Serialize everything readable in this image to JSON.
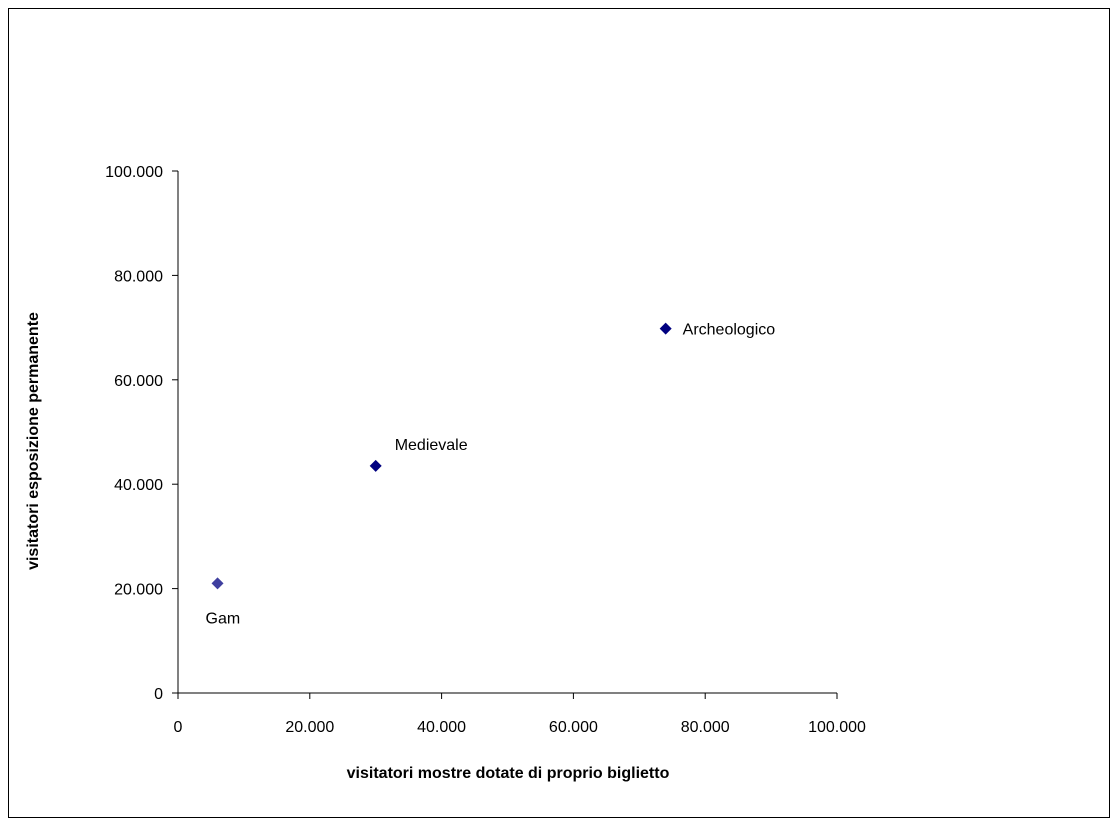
{
  "chart_data": {
    "type": "scatter",
    "xlabel": "visitatori mostre dotate di proprio biglietto",
    "ylabel": "visitatori esposizione permanente",
    "xlim": [
      0,
      100000
    ],
    "ylim": [
      0,
      100000
    ],
    "x_ticks": [
      0,
      20000,
      40000,
      60000,
      80000,
      100000
    ],
    "y_ticks": [
      0,
      20000,
      40000,
      60000,
      80000,
      100000
    ],
    "x_tick_labels": [
      "0",
      "20.000",
      "40.000",
      "60.000",
      "80.000",
      "100.000"
    ],
    "y_tick_labels": [
      "0",
      "20.000",
      "40.000",
      "60.000",
      "80.000",
      "100.000"
    ],
    "grid": false,
    "legend": "none",
    "marker": "diamond",
    "points": [
      {
        "label": "Gam",
        "x": 6000,
        "y": 21000,
        "color": "#3F3F9F",
        "label_position": "below"
      },
      {
        "label": "Medievale",
        "x": 30000,
        "y": 43500,
        "color": "#000080",
        "label_position": "above-right"
      },
      {
        "label": "Archeologico",
        "x": 74000,
        "y": 69800,
        "color": "#000080",
        "label_position": "right"
      }
    ]
  }
}
